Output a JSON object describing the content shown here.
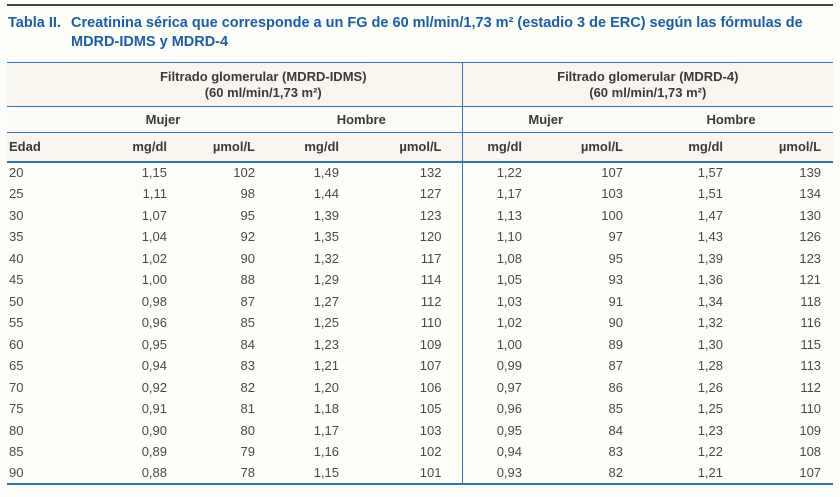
{
  "title": {
    "label": "Tabla II.",
    "text": "Creatinina sérica que corresponde a un FG de 60 ml/min/1,73 m² (estadio 3 de ERC) según las fórmulas de MDRD-IDMS y MDRD-4"
  },
  "colors": {
    "title_blue": "#1a5da8",
    "rule_blue": "#2e75b5",
    "top_rule_dark": "#454545",
    "header_band": "#f8f6ef"
  },
  "table": {
    "groups": [
      {
        "name": "Filtrado glomerular (MDRD-IDMS)",
        "sub": "(60 ml/min/1,73 m²)"
      },
      {
        "name": "Filtrado glomerular (MDRD-4)",
        "sub": "(60 ml/min/1,73 m²)"
      }
    ],
    "sex_headers": [
      "Mujer",
      "Hombre",
      "Mujer",
      "Hombre"
    ],
    "col_headers": [
      "Edad",
      "mg/dl",
      "µmol/L",
      "mg/dl",
      "µmol/L",
      "mg/dl",
      "µmol/L",
      "mg/dl",
      "µmol/L"
    ],
    "rows": [
      [
        "20",
        "1,15",
        "102",
        "1,49",
        "132",
        "1,22",
        "107",
        "1,57",
        "139"
      ],
      [
        "25",
        "1,11",
        "98",
        "1,44",
        "127",
        "1,17",
        "103",
        "1,51",
        "134"
      ],
      [
        "30",
        "1,07",
        "95",
        "1,39",
        "123",
        "1,13",
        "100",
        "1,47",
        "130"
      ],
      [
        "35",
        "1,04",
        "92",
        "1,35",
        "120",
        "1,10",
        "97",
        "1,43",
        "126"
      ],
      [
        "40",
        "1,02",
        "90",
        "1,32",
        "117",
        "1,08",
        "95",
        "1,39",
        "123"
      ],
      [
        "45",
        "1,00",
        "88",
        "1,29",
        "114",
        "1,05",
        "93",
        "1,36",
        "121"
      ],
      [
        "50",
        "0,98",
        "87",
        "1,27",
        "112",
        "1,03",
        "91",
        "1,34",
        "118"
      ],
      [
        "55",
        "0,96",
        "85",
        "1,25",
        "110",
        "1,02",
        "90",
        "1,32",
        "116"
      ],
      [
        "60",
        "0,95",
        "84",
        "1,23",
        "109",
        "1,00",
        "89",
        "1,30",
        "115"
      ],
      [
        "65",
        "0,94",
        "83",
        "1,21",
        "107",
        "0,99",
        "87",
        "1,28",
        "113"
      ],
      [
        "70",
        "0,92",
        "82",
        "1,20",
        "106",
        "0,97",
        "86",
        "1,26",
        "112"
      ],
      [
        "75",
        "0,91",
        "81",
        "1,18",
        "105",
        "0,96",
        "85",
        "1,25",
        "110"
      ],
      [
        "80",
        "0,90",
        "80",
        "1,17",
        "103",
        "0,95",
        "84",
        "1,23",
        "109"
      ],
      [
        "85",
        "0,89",
        "79",
        "1,16",
        "102",
        "0,94",
        "83",
        "1,22",
        "108"
      ],
      [
        "90",
        "0,88",
        "78",
        "1,15",
        "101",
        "0,93",
        "82",
        "1,21",
        "107"
      ]
    ]
  }
}
